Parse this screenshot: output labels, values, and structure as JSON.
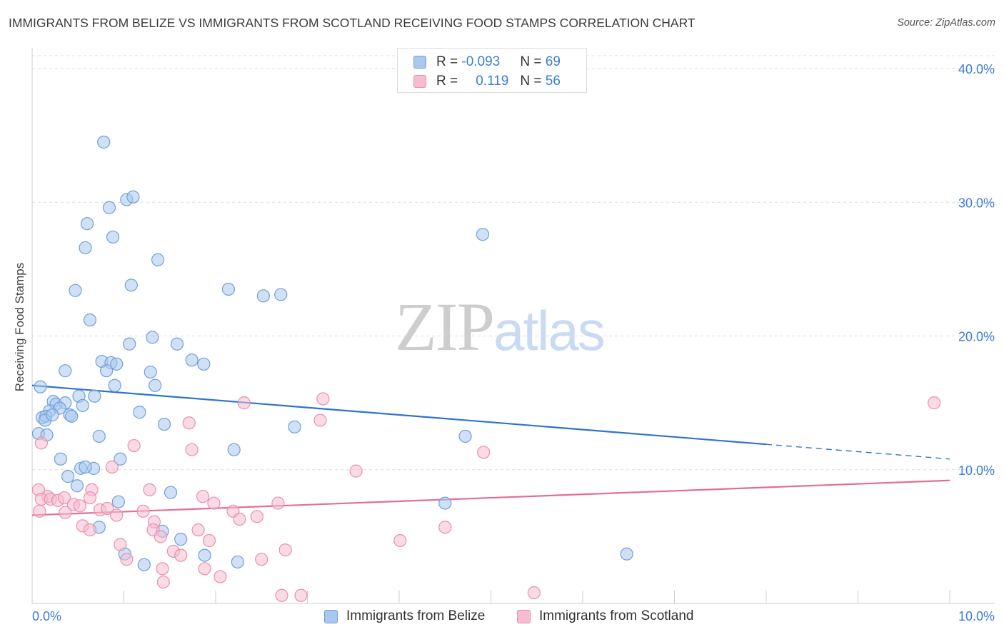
{
  "title": "IMMIGRANTS FROM BELIZE VS IMMIGRANTS FROM SCOTLAND RECEIVING FOOD STAMPS CORRELATION CHART",
  "source": "Source: ZipAtlas.com",
  "watermark": {
    "zip": "ZIP",
    "atlas": "atlas"
  },
  "legend_top": [
    {
      "r_label": "R = ",
      "r_value": "-0.093",
      "n_label": "N = ",
      "n_value": "69"
    },
    {
      "r_label": "R = ",
      "r_value": "0.119",
      "n_label": "N = ",
      "n_value": "56"
    }
  ],
  "colors": {
    "belize_fill": "#a9c8ee",
    "belize_stroke": "#6f9fdc",
    "belize_line": "#2f72cf",
    "scotland_fill": "#f6bccf",
    "scotland_stroke": "#e98fae",
    "scotland_line": "#e46d98",
    "axis_text": "#3d7dd8",
    "grid": "#dcdcdc"
  },
  "chart_data": {
    "type": "scatter",
    "title": "IMMIGRANTS FROM BELIZE VS IMMIGRANTS FROM SCOTLAND RECEIVING FOOD STAMPS CORRELATION CHART",
    "xlabel": "",
    "ylabel": "Receiving Food Stamps",
    "xlim": [
      0,
      10
    ],
    "ylim": [
      0,
      40
    ],
    "x_tick_labels": [
      "0.0%",
      "10.0%"
    ],
    "y_tick_labels": [
      "10.0%",
      "20.0%",
      "30.0%",
      "40.0%"
    ],
    "y_ticks": [
      10,
      20,
      30,
      40
    ],
    "legend": [
      "Immigrants from Belize",
      "Immigrants from Scotland"
    ],
    "series": [
      {
        "name": "Immigrants from Belize",
        "R": -0.093,
        "N": 69,
        "trend": {
          "x0": 0,
          "y0": 16.3,
          "x1": 8.0,
          "y1": 11.9,
          "dash_x1": 10.0,
          "dash_y1": 10.8
        },
        "points": [
          [
            0.78,
            34.5
          ],
          [
            1.03,
            30.2
          ],
          [
            0.84,
            29.6
          ],
          [
            1.1,
            30.4
          ],
          [
            0.6,
            28.4
          ],
          [
            0.88,
            27.4
          ],
          [
            0.58,
            26.6
          ],
          [
            1.37,
            25.7
          ],
          [
            0.47,
            23.4
          ],
          [
            1.08,
            23.8
          ],
          [
            2.14,
            23.5
          ],
          [
            2.52,
            23.0
          ],
          [
            2.71,
            23.1
          ],
          [
            0.63,
            21.2
          ],
          [
            1.06,
            19.4
          ],
          [
            1.31,
            19.9
          ],
          [
            1.58,
            19.4
          ],
          [
            0.76,
            18.1
          ],
          [
            0.86,
            18.0
          ],
          [
            0.92,
            17.9
          ],
          [
            1.74,
            18.2
          ],
          [
            1.87,
            17.9
          ],
          [
            0.36,
            17.4
          ],
          [
            0.81,
            17.4
          ],
          [
            1.29,
            17.3
          ],
          [
            0.09,
            16.2
          ],
          [
            0.9,
            16.3
          ],
          [
            1.34,
            16.3
          ],
          [
            0.51,
            15.5
          ],
          [
            0.68,
            15.5
          ],
          [
            0.23,
            15.1
          ],
          [
            0.26,
            14.9
          ],
          [
            0.36,
            15.0
          ],
          [
            0.55,
            14.8
          ],
          [
            0.19,
            14.4
          ],
          [
            0.3,
            14.6
          ],
          [
            0.41,
            14.1
          ],
          [
            0.43,
            14.0
          ],
          [
            0.11,
            13.9
          ],
          [
            0.15,
            14.0
          ],
          [
            0.14,
            13.7
          ],
          [
            1.17,
            14.3
          ],
          [
            1.44,
            13.4
          ],
          [
            2.86,
            13.2
          ],
          [
            0.07,
            12.7
          ],
          [
            0.16,
            12.6
          ],
          [
            0.73,
            12.5
          ],
          [
            4.72,
            12.5
          ],
          [
            2.2,
            11.5
          ],
          [
            0.31,
            10.8
          ],
          [
            0.96,
            10.8
          ],
          [
            0.53,
            10.1
          ],
          [
            0.67,
            10.1
          ],
          [
            0.39,
            9.5
          ],
          [
            0.49,
            8.8
          ],
          [
            1.51,
            8.3
          ],
          [
            0.94,
            7.6
          ],
          [
            4.5,
            7.5
          ],
          [
            0.73,
            5.7
          ],
          [
            1.42,
            5.4
          ],
          [
            1.62,
            4.8
          ],
          [
            1.01,
            3.7
          ],
          [
            1.88,
            3.6
          ],
          [
            6.48,
            3.7
          ],
          [
            1.22,
            2.9
          ],
          [
            2.24,
            3.1
          ],
          [
            4.91,
            27.6
          ],
          [
            0.58,
            10.2
          ],
          [
            0.22,
            14.1
          ]
        ]
      },
      {
        "name": "Immigrants from Scotland",
        "R": 0.119,
        "N": 56,
        "trend": {
          "x0": 0,
          "y0": 6.6,
          "x1": 10.0,
          "y1": 9.2
        },
        "points": [
          [
            9.83,
            15.0
          ],
          [
            3.17,
            15.3
          ],
          [
            2.31,
            15.0
          ],
          [
            3.14,
            13.7
          ],
          [
            1.71,
            13.5
          ],
          [
            1.11,
            11.8
          ],
          [
            1.74,
            11.5
          ],
          [
            4.92,
            11.3
          ],
          [
            0.87,
            10.2
          ],
          [
            3.53,
            9.9
          ],
          [
            0.07,
            8.5
          ],
          [
            1.28,
            8.5
          ],
          [
            0.65,
            8.5
          ],
          [
            0.17,
            8.0
          ],
          [
            0.1,
            7.8
          ],
          [
            0.2,
            7.8
          ],
          [
            0.28,
            7.7
          ],
          [
            0.63,
            7.9
          ],
          [
            1.86,
            8.0
          ],
          [
            2.68,
            7.5
          ],
          [
            1.98,
            7.5
          ],
          [
            0.45,
            7.4
          ],
          [
            0.52,
            7.3
          ],
          [
            0.08,
            6.9
          ],
          [
            0.36,
            6.8
          ],
          [
            0.74,
            7.0
          ],
          [
            0.82,
            7.1
          ],
          [
            0.92,
            6.6
          ],
          [
            1.21,
            6.9
          ],
          [
            1.33,
            6.1
          ],
          [
            2.19,
            6.9
          ],
          [
            2.26,
            6.3
          ],
          [
            2.45,
            6.5
          ],
          [
            0.55,
            5.8
          ],
          [
            0.63,
            5.5
          ],
          [
            1.32,
            5.5
          ],
          [
            1.81,
            5.5
          ],
          [
            1.4,
            5.0
          ],
          [
            1.93,
            4.7
          ],
          [
            0.96,
            4.4
          ],
          [
            4.01,
            4.7
          ],
          [
            4.5,
            5.7
          ],
          [
            1.54,
            3.9
          ],
          [
            1.62,
            3.6
          ],
          [
            2.76,
            4.0
          ],
          [
            1.03,
            3.3
          ],
          [
            1.42,
            2.6
          ],
          [
            1.88,
            2.6
          ],
          [
            2.05,
            2.0
          ],
          [
            2.5,
            3.3
          ],
          [
            1.43,
            1.6
          ],
          [
            2.72,
            0.6
          ],
          [
            2.93,
            0.6
          ],
          [
            5.47,
            0.8
          ],
          [
            0.1,
            12.0
          ],
          [
            0.35,
            7.9
          ]
        ]
      }
    ]
  }
}
